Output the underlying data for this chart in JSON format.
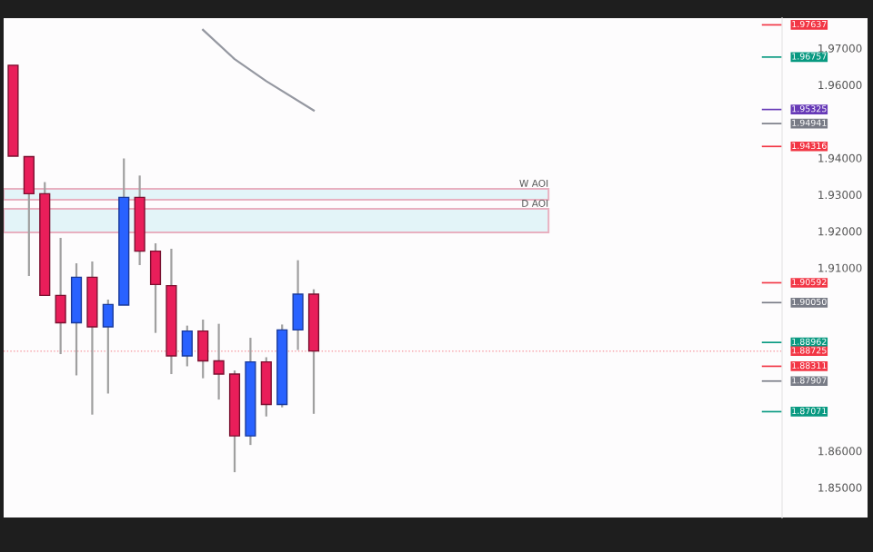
{
  "chart_data": {
    "type": "candlestick",
    "categories": [
      null,
      null,
      null,
      null,
      null,
      null,
      null,
      null,
      null,
      null,
      null,
      null,
      null,
      null,
      null,
      null,
      null,
      null,
      null,
      null,
      null,
      null,
      null,
      null,
      null,
      null,
      null,
      null,
      null,
      null,
      null,
      null,
      null,
      null,
      null,
      null,
      null,
      null,
      null,
      null,
      null,
      null,
      null,
      null,
      null,
      null,
      null,
      null,
      null
    ],
    "ohlc": [
      [
        1.96534,
        1.96534,
        1.94052,
        1.94052
      ],
      [
        1.94037,
        1.94037,
        1.90777,
        1.93025
      ],
      [
        1.93025,
        1.93342,
        1.90246,
        1.90246
      ],
      [
        1.90246,
        1.91819,
        1.88643,
        1.89501
      ],
      [
        1.89501,
        1.91124,
        1.88062,
        1.90742
      ],
      [
        1.90742,
        1.91174,
        1.8699,
        1.89387
      ],
      [
        1.89387,
        1.90132,
        1.87566,
        1.89998
      ],
      [
        1.89983,
        1.93988,
        1.89983,
        1.92926
      ],
      [
        1.92926,
        1.93521,
        1.91074,
        1.91457
      ],
      [
        1.91457,
        1.9167,
        1.89223,
        1.90543
      ],
      [
        1.90514,
        1.91521,
        1.88097,
        1.88593
      ],
      [
        1.88593,
        1.89422,
        1.8831,
        1.89273
      ],
      [
        1.89273,
        1.89586,
        1.87983,
        1.88459
      ],
      [
        1.88459,
        1.89471,
        1.87402,
        1.88097
      ],
      [
        1.88097,
        1.88196,
        1.85417,
        1.86409
      ],
      [
        1.86409,
        1.89089,
        1.86161,
        1.88429
      ],
      [
        1.88429,
        1.88558,
        1.8694,
        1.87268
      ],
      [
        1.87268,
        1.89452,
        1.87189,
        1.89303
      ],
      [
        1.89303,
        1.91208,
        1.88757,
        1.9028
      ],
      [
        1.9028,
        1.90414,
        1.87012,
        1.88727
      ],
      null,
      null,
      null,
      null,
      null,
      null,
      null,
      null,
      null,
      null,
      null,
      null,
      null,
      null,
      null,
      null,
      null,
      null,
      null,
      null,
      null,
      null,
      null,
      null,
      null,
      null,
      null,
      null,
      null
    ],
    "colors": [
      "#e91e5a",
      "#e91e5a",
      "#e91e5a",
      "#e91e5a",
      "#2962ff",
      "#e91e5a",
      "#2962ff",
      "#2962ff",
      "#e91e5a",
      "#e91e5a",
      "#e91e5a",
      "#2962ff",
      "#e91e5a",
      "#e91e5a",
      "#e91e5a",
      "#2962ff",
      "#e91e5a",
      "#2962ff",
      "#2962ff",
      "#e91e5a",
      null,
      null,
      null,
      null,
      null,
      null,
      null,
      null,
      null,
      null,
      null,
      null,
      null,
      null,
      null,
      null,
      null,
      null,
      null,
      null,
      null,
      null,
      null,
      null,
      null,
      null,
      null,
      null,
      null
    ],
    "series": [
      {
        "type": "line",
        "color": "#9598a1",
        "values": [
          null,
          null,
          null,
          null,
          null,
          null,
          null,
          null,
          null,
          null,
          null,
          null,
          1.975,
          null,
          1.967,
          null,
          1.961,
          null,
          null,
          1.953,
          null,
          null,
          null,
          null,
          null,
          null,
          null,
          null,
          null,
          null,
          null,
          null,
          null,
          null,
          null,
          null,
          null,
          null,
          null,
          null,
          null,
          null,
          null,
          null,
          null,
          null,
          null,
          null,
          null
        ]
      }
    ],
    "ylim": [
      1.8418,
      1.9782
    ],
    "yticks": [
      {
        "value": 1.97,
        "label": "1.97000"
      },
      {
        "value": 1.96,
        "label": "1.96000"
      },
      {
        "value": 1.94,
        "label": "1.94000"
      },
      {
        "value": 1.93,
        "label": "1.93000"
      },
      {
        "value": 1.92,
        "label": "1.92000"
      },
      {
        "value": 1.91,
        "label": "1.91000"
      },
      {
        "value": 1.86,
        "label": "1.86000"
      },
      {
        "value": 1.85,
        "label": "1.85000"
      }
    ],
    "tick_labels": "y",
    "grid": false,
    "bands": [
      {
        "axis": "y",
        "from": 1.92861,
        "to": 1.93159,
        "label": "W AOI",
        "color": "#e3f4f8"
      },
      {
        "axis": "y",
        "from": 1.91968,
        "to": 1.92613,
        "label": "D AOI",
        "color": "#e3f4f8"
      }
    ],
    "ref_lines": [
      {
        "axis": "y",
        "value": 1.97637,
        "label": "1.97637",
        "color": "#f23645"
      },
      {
        "axis": "y",
        "value": 1.96757,
        "label": "1.96757",
        "color": "#089981"
      },
      {
        "axis": "y",
        "value": 1.95325,
        "label": "1.95325",
        "color": "#673ab7"
      },
      {
        "axis": "y",
        "value": 1.94941,
        "label": "1.94941",
        "color": "#787b86"
      },
      {
        "axis": "y",
        "value": 1.94316,
        "label": "1.94316",
        "color": "#f23645"
      },
      {
        "axis": "y",
        "value": 1.90592,
        "label": "1.90592",
        "color": "#f23645"
      },
      {
        "axis": "y",
        "value": 1.9005,
        "label": "1.90050",
        "color": "#787b86"
      },
      {
        "axis": "y",
        "value": 1.88962,
        "label": "1.88962",
        "color": "#089981"
      },
      {
        "axis": "y",
        "value": 1.88725,
        "label": "1.88725",
        "color": "#f23645",
        "line_style": "dotted"
      },
      {
        "axis": "y",
        "value": 1.88311,
        "label": "1.88311",
        "color": "#f23645"
      },
      {
        "axis": "y",
        "value": 1.87907,
        "label": "1.87907",
        "color": "#787b86"
      },
      {
        "axis": "y",
        "value": 1.87071,
        "label": "1.87071",
        "color": "#089981"
      }
    ]
  }
}
